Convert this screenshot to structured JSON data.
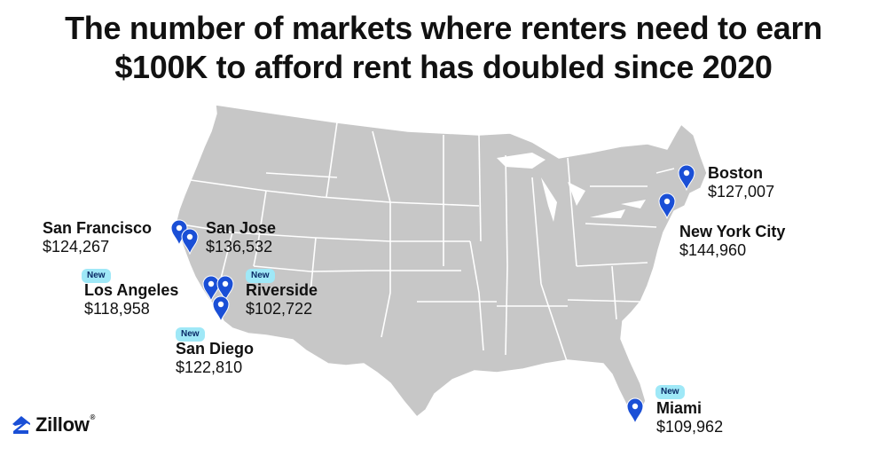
{
  "headline": {
    "line1": "The number of markets where renters need to earn",
    "line2": "$100K to afford rent has doubled since 2020"
  },
  "map": {
    "land_color": "#c7c7c7",
    "border_color": "#ffffff",
    "pin_color": "#1a4fd6"
  },
  "badge_label": "New",
  "cities": [
    {
      "name": "San Francisco",
      "value": "$124,267",
      "new": false
    },
    {
      "name": "San Jose",
      "value": "$136,532",
      "new": false
    },
    {
      "name": "Los Angeles",
      "value": "$118,958",
      "new": true
    },
    {
      "name": "Riverside",
      "value": "$102,722",
      "new": true
    },
    {
      "name": "San Diego",
      "value": "$122,810",
      "new": true
    },
    {
      "name": "Boston",
      "value": "$127,007",
      "new": false
    },
    {
      "name": "New York City",
      "value": "$144,960",
      "new": false
    },
    {
      "name": "Miami",
      "value": "$109,962",
      "new": true
    }
  ],
  "logo": {
    "text": "Zillow",
    "icon": "zillow-house-icon"
  }
}
